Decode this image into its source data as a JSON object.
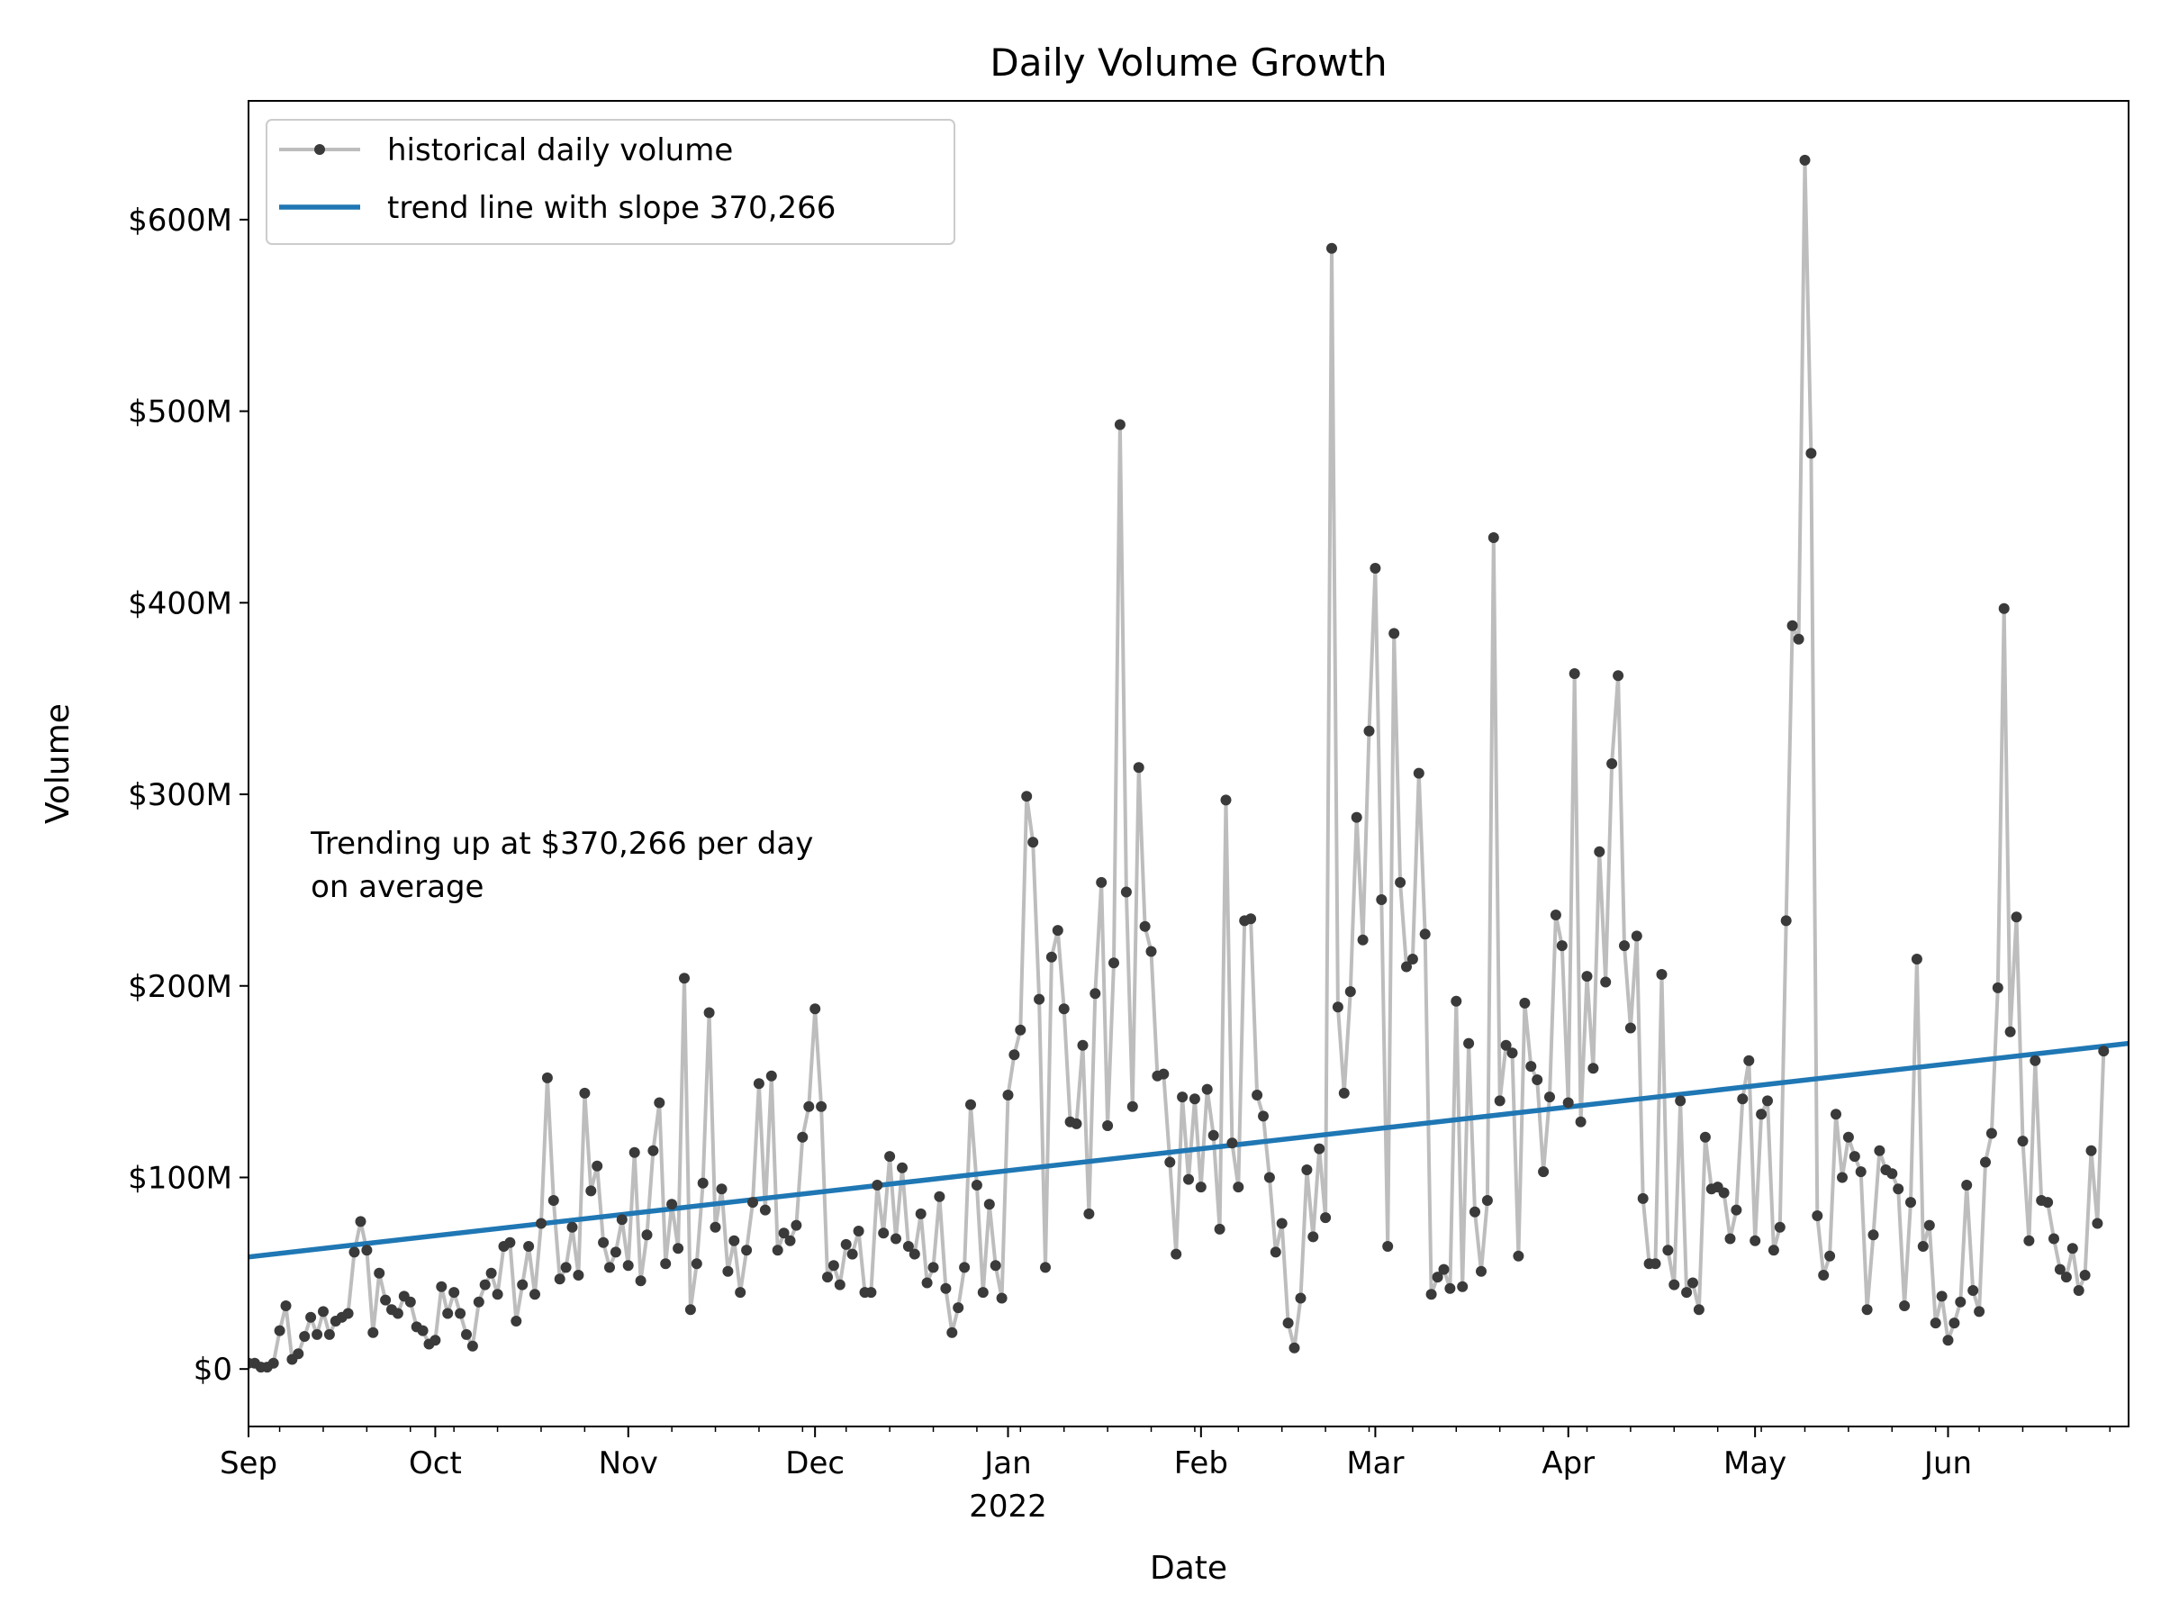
{
  "chart_data": {
    "type": "line",
    "title": "Daily Volume Growth",
    "xlabel": "Date",
    "ylabel": "Volume",
    "x_range": [
      "2021-09-01",
      "2022-06-30"
    ],
    "ylim": [
      -30000000,
      662000000
    ],
    "y_ticks": [
      {
        "value": 0,
        "label": "$0"
      },
      {
        "value": 100000000,
        "label": "$100M"
      },
      {
        "value": 200000000,
        "label": "$200M"
      },
      {
        "value": 300000000,
        "label": "$300M"
      },
      {
        "value": 400000000,
        "label": "$400M"
      },
      {
        "value": 500000000,
        "label": "$500M"
      },
      {
        "value": 600000000,
        "label": "$600M"
      }
    ],
    "x_ticks": [
      {
        "date": "2021-09-01",
        "label": "Sep",
        "sublabel": ""
      },
      {
        "date": "2021-10-01",
        "label": "Oct",
        "sublabel": ""
      },
      {
        "date": "2021-11-01",
        "label": "Nov",
        "sublabel": ""
      },
      {
        "date": "2021-12-01",
        "label": "Dec",
        "sublabel": ""
      },
      {
        "date": "2022-01-01",
        "label": "Jan",
        "sublabel": "2022"
      },
      {
        "date": "2022-02-01",
        "label": "Feb",
        "sublabel": ""
      },
      {
        "date": "2022-03-01",
        "label": "Mar",
        "sublabel": ""
      },
      {
        "date": "2022-04-01",
        "label": "Apr",
        "sublabel": ""
      },
      {
        "date": "2022-05-01",
        "label": "May",
        "sublabel": ""
      },
      {
        "date": "2022-06-01",
        "label": "Jun",
        "sublabel": ""
      }
    ],
    "legend_position": "upper-left",
    "grid": false,
    "annotation": {
      "lines": [
        "Trending up at $370,266 per day",
        "on average"
      ],
      "anchor": {
        "x": "2021-09-11",
        "y": 285000000
      }
    },
    "series": [
      {
        "name": "historical daily volume",
        "kind": "line-markers",
        "color": "#bdbdbd",
        "marker_color": "#3a3a3a",
        "x_start": "2021-09-01",
        "x_step_days": 1,
        "values": [
          3,
          3,
          1,
          1,
          3,
          20,
          33,
          5,
          8,
          17,
          27,
          18,
          30,
          18,
          25,
          27,
          29,
          61,
          77,
          62,
          19,
          50,
          36,
          31,
          29,
          38,
          35,
          22,
          20,
          13,
          15,
          43,
          29,
          40,
          29,
          18,
          12,
          35,
          44,
          50,
          39,
          64,
          66,
          25,
          44,
          64,
          39,
          76,
          152,
          88,
          47,
          53,
          74,
          49,
          144,
          93,
          106,
          66,
          53,
          61,
          78,
          54,
          113,
          46,
          70,
          114,
          139,
          55,
          86,
          63,
          204,
          31,
          55,
          97,
          186,
          74,
          94,
          51,
          67,
          40,
          62,
          87,
          149,
          83,
          153,
          62,
          71,
          67,
          75,
          121,
          137,
          188,
          137,
          48,
          54,
          44,
          65,
          60,
          72,
          40,
          40,
          96,
          71,
          111,
          68,
          105,
          64,
          60,
          81,
          45,
          53,
          90,
          42,
          19,
          32,
          53,
          138,
          96,
          40,
          86,
          54,
          37,
          143,
          164,
          177,
          299,
          275,
          193,
          53,
          215,
          229,
          188,
          129,
          128,
          169,
          81,
          196,
          254,
          127,
          212,
          493,
          249,
          137,
          314,
          231,
          218,
          153,
          154,
          108,
          60,
          142,
          99,
          141,
          95,
          146,
          122,
          73,
          297,
          118,
          95,
          234,
          235,
          143,
          132,
          100,
          61,
          76,
          24,
          11,
          37,
          104,
          69,
          115,
          79,
          585,
          189,
          144,
          197,
          288,
          224,
          333,
          418,
          245,
          64,
          384,
          254,
          210,
          214,
          311,
          227,
          39,
          48,
          52,
          42,
          192,
          43,
          170,
          82,
          51,
          88,
          434,
          140,
          169,
          165,
          59,
          191,
          158,
          151,
          103,
          142,
          237,
          221,
          139,
          363,
          129,
          205,
          157,
          270,
          202,
          316,
          362,
          221,
          178,
          226,
          89,
          55,
          55,
          206,
          62,
          44,
          140,
          40,
          45,
          31,
          121,
          94,
          95,
          92,
          68,
          83,
          141,
          161,
          67,
          133,
          140,
          62,
          74,
          234,
          388,
          381,
          631,
          478,
          80,
          49,
          59,
          133,
          100,
          121,
          111,
          103,
          31,
          70,
          114,
          104,
          102,
          94,
          33,
          87,
          214,
          64,
          75,
          24,
          38,
          15,
          24,
          35,
          96,
          41,
          30,
          108,
          123,
          199,
          397,
          176,
          236,
          119,
          67,
          161,
          88,
          87,
          68,
          52,
          48,
          63,
          41,
          49,
          114,
          76,
          166
        ]
      },
      {
        "name": "trend line with slope 370,266",
        "kind": "line",
        "color": "#1f77b4",
        "slope_per_day": 370266,
        "start": {
          "x": "2021-09-01",
          "y": 58500000
        },
        "end": {
          "x": "2022-06-30",
          "y": 170000000
        }
      }
    ]
  }
}
